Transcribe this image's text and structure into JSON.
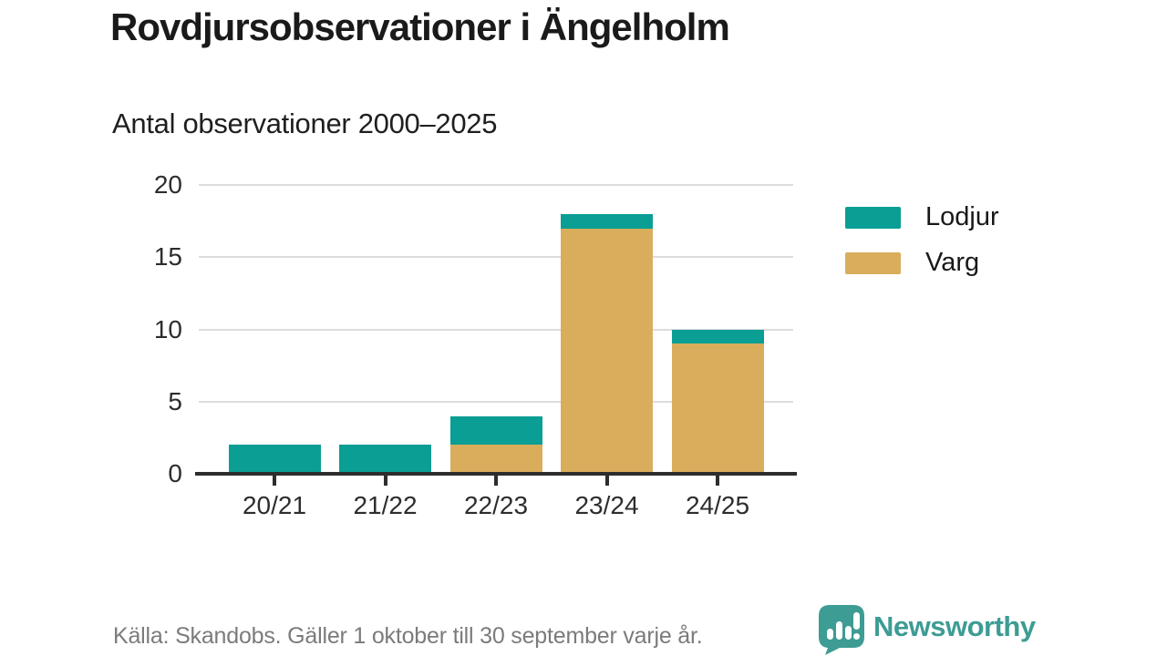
{
  "chart_data": {
    "type": "bar",
    "stacked": true,
    "title": "Rovdjursobservationer i Ängelholm",
    "subtitle": "Antal observationer 2000–2025",
    "categories": [
      "20/21",
      "21/22",
      "22/23",
      "23/24",
      "24/25"
    ],
    "series": [
      {
        "name": "Varg",
        "color": "#d9ad5c",
        "values": [
          0,
          0,
          2,
          17,
          9
        ]
      },
      {
        "name": "Lodjur",
        "color": "#0a9e94",
        "values": [
          2,
          2,
          2,
          1,
          1
        ]
      }
    ],
    "totals": [
      2,
      2,
      4,
      18,
      10
    ],
    "legend": [
      {
        "label": "Lodjur",
        "color": "#0a9e94"
      },
      {
        "label": "Varg",
        "color": "#d9ad5c"
      }
    ],
    "legend_position": "right",
    "xlabel": "",
    "ylabel": "",
    "ylim": [
      0,
      20
    ],
    "yticks": [
      0,
      5,
      10,
      15,
      20
    ],
    "grid": true,
    "grid_color": "#dcdcdc",
    "axis_color": "#2d2d2d"
  },
  "footer": {
    "source": "Källa: Skandobs. Gäller 1 oktober till 30 september varje år."
  },
  "logo": {
    "text": "Newsworthy",
    "icon": "speech-bubble-bar-chart",
    "color": "#3d9c94"
  }
}
